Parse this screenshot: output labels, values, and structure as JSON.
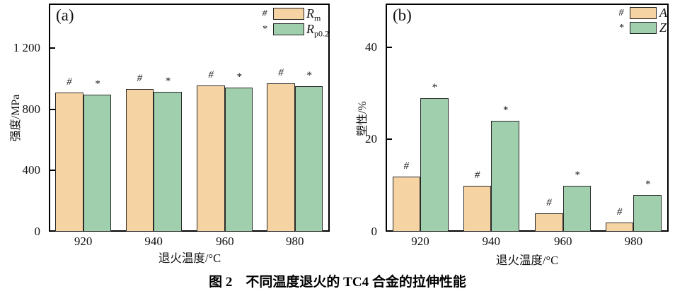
{
  "caption": "图 2　不同温度退火的 TC4 合金的拉伸性能",
  "colors": {
    "orange": "#F6D3A3",
    "green": "#A0CFAD",
    "bar_border": "#2a2a2a",
    "axis": "#000000",
    "background": "#ffffff"
  },
  "chart_data": [
    {
      "id": "a",
      "type": "bar",
      "panel_label": "(a)",
      "xlabel": "退火温度/°C",
      "ylabel": "强度/MPa",
      "categories": [
        "920",
        "940",
        "960",
        "980"
      ],
      "ylim": [
        0,
        1490
      ],
      "yticks": [
        0,
        400,
        800,
        1200
      ],
      "ytick_labels": [
        "0",
        "400",
        "800",
        "1 200"
      ],
      "grid": false,
      "legend_position": "top-right",
      "series": [
        {
          "name_main": "R",
          "name_sub": "m",
          "marker": "#",
          "color": "orange",
          "values": [
            910,
            930,
            955,
            970
          ]
        },
        {
          "name_main": "R",
          "name_sub": "p0.2",
          "marker": "*",
          "color": "green",
          "values": [
            895,
            912,
            940,
            948
          ]
        }
      ]
    },
    {
      "id": "b",
      "type": "bar",
      "panel_label": "(b)",
      "xlabel": "退火温度/°C",
      "ylabel": "塑性/%",
      "categories": [
        "920",
        "940",
        "960",
        "980"
      ],
      "ylim": [
        0,
        49.5
      ],
      "yticks": [
        0,
        20,
        40
      ],
      "ytick_labels": [
        "0",
        "20",
        "40"
      ],
      "grid": false,
      "legend_position": "top-right",
      "series": [
        {
          "name_main": "A",
          "name_sub": "",
          "marker": "#",
          "color": "orange",
          "values": [
            12,
            10,
            4,
            2
          ]
        },
        {
          "name_main": "Z",
          "name_sub": "",
          "marker": "*",
          "color": "green",
          "values": [
            29,
            24,
            10,
            8
          ]
        }
      ]
    }
  ]
}
